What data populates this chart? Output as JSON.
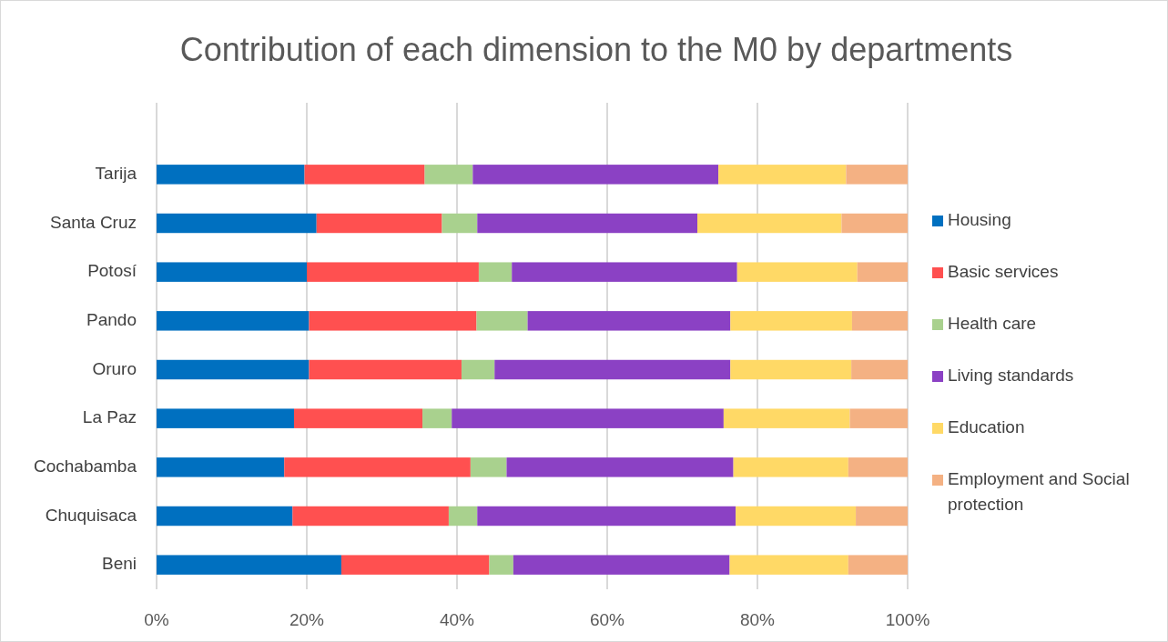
{
  "chart_data": {
    "type": "bar",
    "orientation": "horizontal",
    "stacked": true,
    "title": "Contribution of each dimension to the M0 by departments",
    "categories": [
      "Tarija",
      "Santa Cruz",
      "Potosí",
      "Pando",
      "Oruro",
      "La Paz",
      "Cochabamba",
      "Chuquisaca",
      "Beni"
    ],
    "series": [
      {
        "name": "Housing",
        "color": "#0070c0",
        "values": [
          19.7,
          21.3,
          20.0,
          20.3,
          20.3,
          18.3,
          17.0,
          18.1,
          24.6
        ]
      },
      {
        "name": "Basic services",
        "color": "#ff5050",
        "values": [
          16.0,
          16.7,
          22.9,
          22.3,
          20.3,
          17.1,
          24.8,
          20.8,
          19.7
        ]
      },
      {
        "name": "Health care",
        "color": "#a9d18e",
        "values": [
          6.4,
          4.7,
          4.4,
          6.8,
          4.4,
          3.9,
          4.8,
          3.8,
          3.2
        ]
      },
      {
        "name": "Living standards",
        "color": "#8b41c4",
        "values": [
          32.7,
          29.3,
          30.0,
          27.0,
          31.4,
          36.2,
          30.2,
          34.4,
          28.8
        ]
      },
      {
        "name": "Education",
        "color": "#ffd966",
        "values": [
          17.0,
          19.2,
          16.0,
          16.2,
          16.1,
          16.8,
          15.3,
          16.0,
          15.8
        ]
      },
      {
        "name": "Employment and Social protection",
        "color": "#f4b183",
        "values": [
          8.2,
          8.8,
          6.7,
          7.4,
          7.5,
          7.7,
          7.9,
          6.9,
          7.9
        ]
      }
    ],
    "xlim": [
      0,
      100
    ],
    "xticks": [
      {
        "value": 0,
        "label": "0%"
      },
      {
        "value": 20,
        "label": "20%"
      },
      {
        "value": 40,
        "label": "40%"
      },
      {
        "value": 60,
        "label": "60%"
      },
      {
        "value": 80,
        "label": "80%"
      },
      {
        "value": 100,
        "label": "100%"
      }
    ],
    "grid": "x",
    "legend": "right"
  }
}
